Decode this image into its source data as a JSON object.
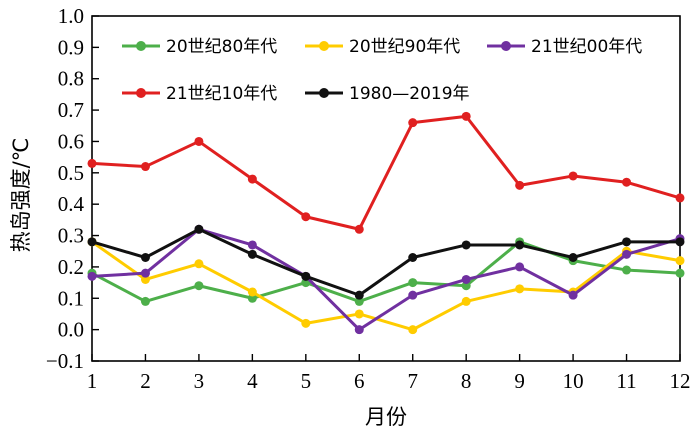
{
  "chart_data": {
    "type": "line",
    "xlabel": "月份",
    "ylabel": "热岛强度/℃",
    "x": [
      1,
      2,
      3,
      4,
      5,
      6,
      7,
      8,
      9,
      10,
      11,
      12
    ],
    "xlim": [
      1,
      12
    ],
    "ylim": [
      -0.1,
      1.0
    ],
    "yticks": [
      "−0.1",
      "0.0",
      "0.1",
      "0.2",
      "0.3",
      "0.4",
      "0.5",
      "0.6",
      "0.7",
      "0.8",
      "0.9",
      "1.0"
    ],
    "xticks": [
      "1",
      "2",
      "3",
      "4",
      "5",
      "6",
      "7",
      "8",
      "9",
      "10",
      "11",
      "12"
    ],
    "grid": false,
    "legend": "top",
    "series": [
      {
        "name": "20世纪80年代",
        "color": "#4daf4a",
        "values": [
          0.18,
          0.09,
          0.14,
          0.1,
          0.15,
          0.09,
          0.15,
          0.14,
          0.28,
          0.22,
          0.19,
          0.18
        ]
      },
      {
        "name": "20世纪90年代",
        "color": "#ffcc00",
        "values": [
          0.28,
          0.16,
          0.21,
          0.12,
          0.02,
          0.05,
          0.0,
          0.09,
          0.13,
          0.12,
          0.25,
          0.22
        ]
      },
      {
        "name": "21世纪00年代",
        "color": "#7030a0",
        "values": [
          0.17,
          0.18,
          0.32,
          0.27,
          0.17,
          0.0,
          0.11,
          0.16,
          0.2,
          0.11,
          0.24,
          0.29
        ]
      },
      {
        "name": "21世纪10年代",
        "color": "#e02020",
        "values": [
          0.53,
          0.52,
          0.6,
          0.48,
          0.36,
          0.32,
          0.66,
          0.68,
          0.46,
          0.49,
          0.47,
          0.42
        ]
      },
      {
        "name": "1980—2019年",
        "color": "#111111",
        "values": [
          0.28,
          0.23,
          0.32,
          0.24,
          0.17,
          0.11,
          0.23,
          0.27,
          0.27,
          0.23,
          0.28,
          0.28
        ]
      }
    ]
  }
}
